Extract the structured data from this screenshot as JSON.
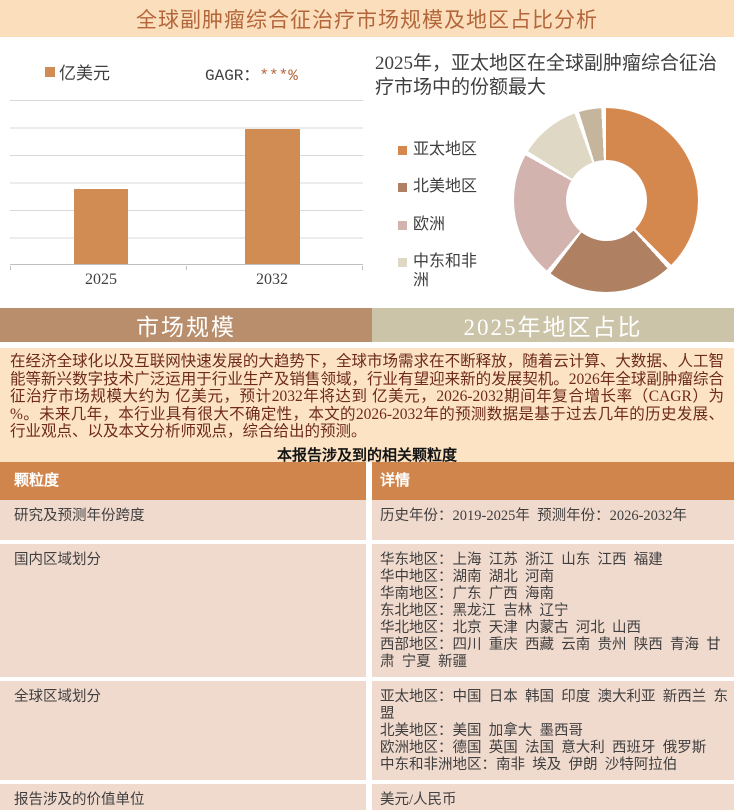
{
  "header": {
    "title": "全球副肿瘤综合征治疗市场规模及地区占比分析"
  },
  "bar_section": {
    "unit_legend": "亿美元",
    "cagr_prefix": "GAGR：",
    "cagr_value": "***%"
  },
  "donut_section": {
    "title": "2025年，亚太地区在全球副肿瘤综合征治疗市场中的份额最大",
    "legend": [
      "亚太地区",
      "北美地区",
      "欧洲",
      "中东和非洲"
    ]
  },
  "tabs": [
    {
      "label": "市场规模",
      "bg": "#B88E6C"
    },
    {
      "label": "2025年地区占比",
      "bg": "#CCC4A8"
    }
  ],
  "paragraph": "在经济全球化以及互联网快速发展的大趋势下，全球市场需求在不断释放，随着云计算、大数据、人工智能等新兴数字技术广泛运用于行业生产及销售领域，行业有望迎来新的发展契机。2026年全球副肿瘤综合征治疗市场规模大约为 亿美元，预计2032年将达到 亿美元，2026-2032期间年复合增长率（CAGR）为 %。未来几年，本行业具有很大不确定性，本文的2026-2032年的预测数据是基于过去几年的历史发展、行业观点、以及本文分析师观点，综合给出的预测。",
  "table": {
    "title": "本报告涉及到的相关颗粒度",
    "headers": [
      "颗粒度",
      "详情"
    ],
    "rows": [
      {
        "granularity": "研究及预测年份跨度",
        "details": [
          "历史年份：2019-2025年  预测年份：2026-2032年"
        ]
      },
      {
        "granularity": "国内区域划分",
        "details": [
          "华东地区：上海  江苏  浙江  山东  江西  福建",
          "华中地区：湖南  湖北  河南",
          "华南地区：广东  广西  海南",
          "东北地区：黑龙江  吉林  辽宁",
          "华北地区：北京  天津  内蒙古  河北  山西",
          "西部地区：四川  重庆  西藏  云南  贵州  陕西  青海  甘肃  宁夏  新疆"
        ]
      },
      {
        "granularity": "全球区域划分",
        "details": [
          "亚太地区：中国  日本  韩国  印度  澳大利亚  新西兰  东盟",
          "北美地区：美国  加拿大  墨西哥",
          "欧洲地区：德国  英国  法国  意大利  西班牙  俄罗斯",
          "中东和非洲地区：南非  埃及  伊朗  沙特阿拉伯"
        ]
      },
      {
        "granularity": "报告涉及的价值单位",
        "details": [
          "美元/人民币"
        ]
      }
    ]
  },
  "colors": {
    "header_bg": "#FBDFBC",
    "header_text": "#B4663B",
    "bar": "#D18C54",
    "paragraph_bg": "#FCE3C4",
    "paragraph_text": "#6E2A1B",
    "table_header_bg": "#D0854D",
    "table_row_bg": "#F0DACE"
  },
  "chart_data": [
    {
      "type": "bar",
      "title": "市场规模（亿美元），数值被掩码为***",
      "unit": "亿美元",
      "cagr_label": "GAGR：***%",
      "categories": [
        "2025",
        "2032"
      ],
      "values_pct_of_plot": [
        45.5,
        82.5
      ],
      "values_display": [
        "***",
        "***"
      ],
      "bar_color": "#D18C54",
      "grid": true,
      "gridline_count": 6,
      "ylabel": "",
      "xlabel": ""
    },
    {
      "type": "pie",
      "subtype": "donut",
      "title": "2025年，亚太地区在全球副肿瘤综合征治疗市场中的份额最大",
      "legend_position": "left",
      "slices": [
        {
          "label": "亚太地区",
          "color": "#D5884E",
          "start_deg": 0,
          "end_deg": 135,
          "share_pct_est": 37.5
        },
        {
          "label": "北美地区",
          "color": "#AF8061",
          "start_deg": 138,
          "end_deg": 217,
          "share_pct_est": 22
        },
        {
          "label": "欧洲",
          "color": "#D2B3AD",
          "start_deg": 220,
          "end_deg": 299,
          "share_pct_est": 22
        },
        {
          "label": "中东和非洲",
          "color": "#DFD8C5",
          "start_deg": 302,
          "end_deg": 340,
          "share_pct_est": 10.5
        },
        {
          "label": "",
          "color": "#C5B59C",
          "start_deg": 343,
          "end_deg": 357,
          "share_pct_est": 4
        }
      ]
    }
  ]
}
